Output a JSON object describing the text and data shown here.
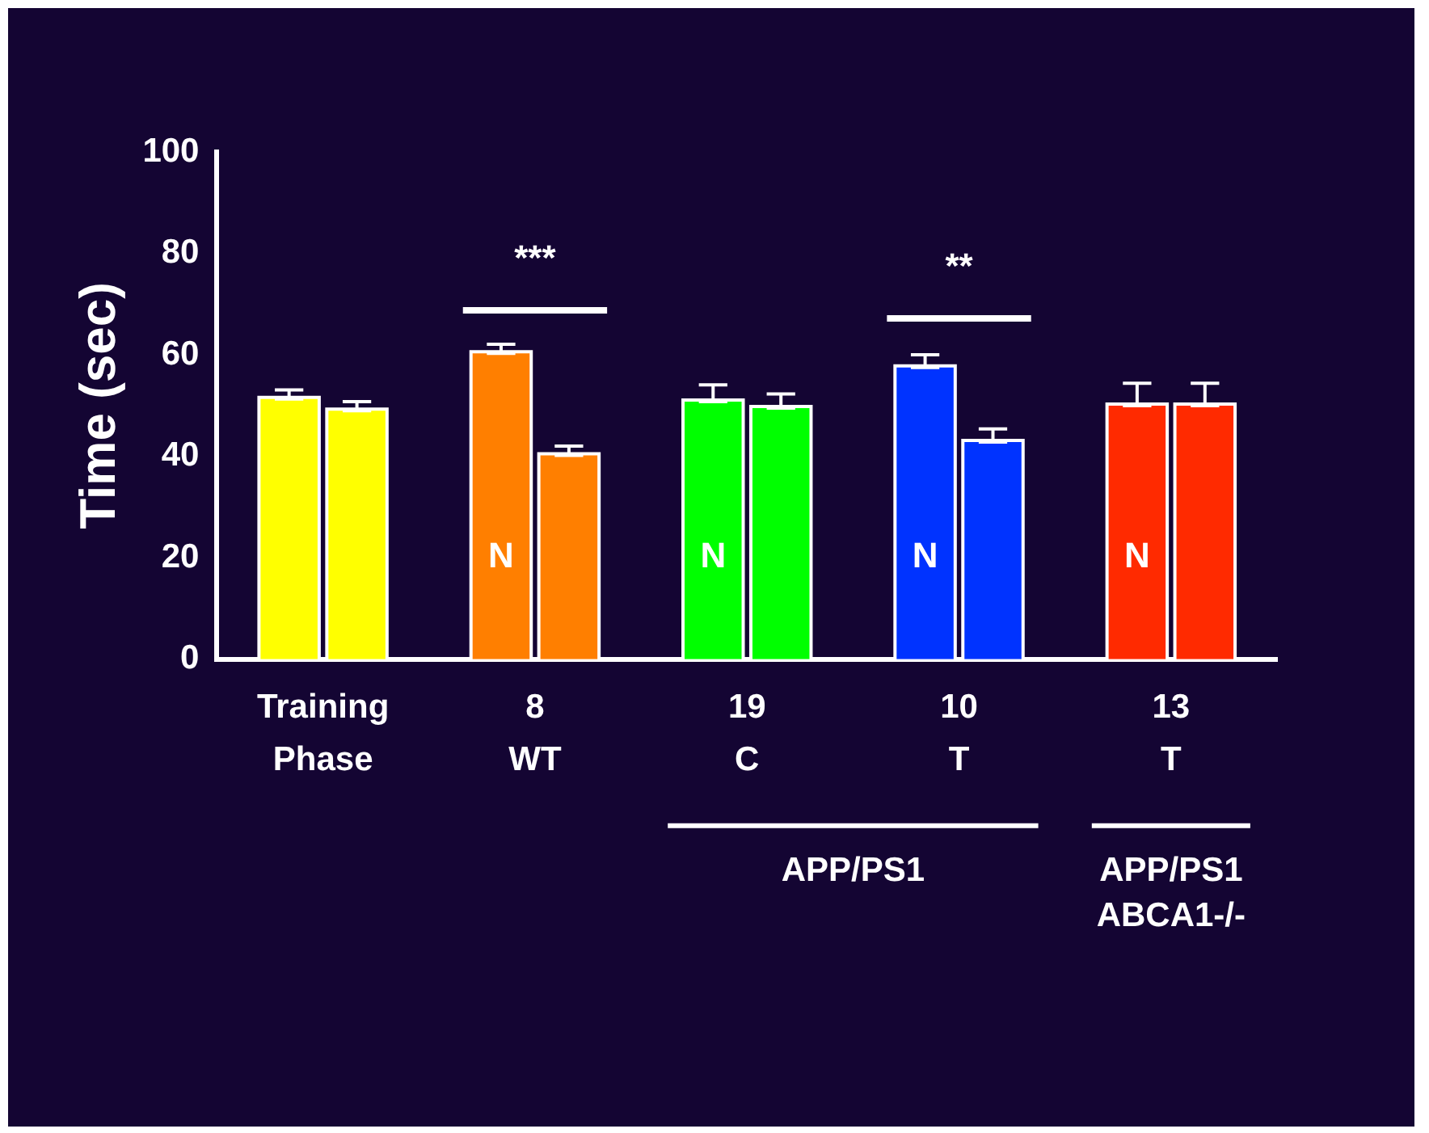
{
  "chart_data": {
    "type": "bar",
    "ylabel": "Time (sec)",
    "categories": [
      "Training\nPhase",
      "8\nWT",
      "19\nC",
      "10\nT",
      "13\nT"
    ],
    "series": [
      {
        "colors": [
          "#ffff00",
          "#ff7f00",
          "#00ff00",
          "#0033ff",
          "#ff2a00"
        ],
        "values": [
          51.3,
          60.3,
          50.8,
          57.5,
          50
        ],
        "errors": [
          [
            51.3,
            53.1
          ],
          [
            60.3,
            62.1
          ],
          [
            50.8,
            54.1
          ],
          [
            57.5,
            60
          ],
          [
            50,
            54.4
          ]
        ]
      },
      {
        "colors": [
          "#ffff00",
          "#ff7f00",
          "#00ff00",
          "#0033ff",
          "#ff2a00"
        ],
        "values": [
          49,
          40.2,
          49.5,
          42.8,
          50
        ],
        "errors": [
          [
            49,
            50.8
          ],
          [
            40.2,
            42
          ],
          [
            49.5,
            52.3
          ],
          [
            42.8,
            45.4
          ],
          [
            50,
            54.4
          ]
        ]
      }
    ],
    "ylim": [
      0,
      100
    ],
    "yticks": [
      0,
      20,
      40,
      60,
      80,
      100
    ],
    "grid": false,
    "legend": false,
    "annotations": [
      "***",
      "**",
      {
        "text": "N",
        "x": "8\nWT",
        "y": 20
      },
      {
        "text": "N",
        "x": "19\nC",
        "y": 20
      },
      {
        "text": "N",
        "x": "10\nT",
        "y": 20
      },
      {
        "text": "N",
        "x": "13\nT",
        "y": 20
      },
      "APP/PS1",
      "APP/PS1\nABCA1-/-"
    ]
  }
}
